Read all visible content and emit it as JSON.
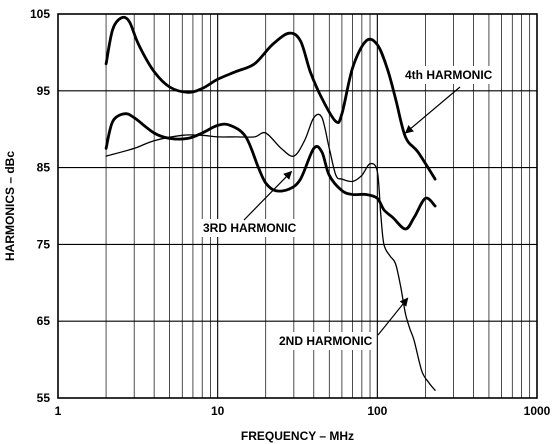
{
  "chart_data": {
    "type": "line",
    "title": "",
    "xlabel": "FREQUENCY – MHz",
    "ylabel": "HARMONICS – dBc",
    "x_scale": "log",
    "xlim": [
      1,
      1000
    ],
    "ylim": [
      55,
      105
    ],
    "x_ticks": [
      1,
      10,
      100,
      1000
    ],
    "x_tick_labels": [
      "1",
      "10",
      "100",
      "1000"
    ],
    "y_ticks": [
      55,
      65,
      75,
      85,
      95,
      105
    ],
    "y_tick_labels": [
      "55",
      "65",
      "75",
      "85",
      "95",
      "105"
    ],
    "grid": true,
    "series": [
      {
        "name": "4th HARMONIC",
        "color": "#000000",
        "x": [
          2,
          2.2,
          2.5,
          2.8,
          3.2,
          4,
          5,
          6.5,
          8,
          10,
          13,
          17,
          22,
          28,
          33,
          38,
          45,
          55,
          60,
          70,
          85,
          100,
          115,
          130,
          150,
          180,
          230
        ],
        "y": [
          98.5,
          103,
          104.5,
          104,
          101,
          97.5,
          95.5,
          94.8,
          95.3,
          96.5,
          97.5,
          98.5,
          101,
          102.5,
          101.5,
          97.5,
          94,
          91,
          92,
          98,
          101.5,
          101,
          98,
          94,
          89,
          87,
          83.5
        ]
      },
      {
        "name": "3RD HARMONIC",
        "color": "#000000",
        "x": [
          2,
          2.2,
          2.6,
          3,
          4,
          5,
          6.5,
          8,
          10,
          12,
          15,
          18,
          20,
          23,
          28,
          33,
          40,
          45,
          50,
          60,
          70,
          85,
          100,
          110,
          125,
          150,
          170,
          200,
          230
        ],
        "y": [
          87.5,
          91,
          92,
          91.5,
          89.5,
          88.8,
          88.8,
          89.5,
          90.5,
          90.5,
          89,
          85,
          83,
          82,
          82.2,
          83.5,
          87.5,
          87,
          84,
          82,
          81.5,
          81.5,
          81,
          79.5,
          78.5,
          77,
          78.5,
          81,
          80
        ]
      },
      {
        "name": "2ND HARMONIC",
        "color": "#000000",
        "x": [
          2,
          3,
          4,
          6,
          8,
          10,
          13,
          17,
          20,
          25,
          30,
          35,
          40,
          45,
          50,
          55,
          60,
          70,
          80,
          90,
          100,
          105,
          110,
          120,
          130,
          140,
          150,
          160,
          170,
          190,
          210,
          230
        ],
        "y": [
          86.5,
          87.5,
          88.5,
          89.2,
          89.2,
          89,
          89,
          89,
          89.5,
          87.5,
          86.5,
          88.5,
          91.5,
          91.5,
          87.5,
          84,
          83.5,
          83.2,
          84,
          85.5,
          84.5,
          79,
          75,
          73.5,
          72.5,
          69.5,
          66,
          64,
          62.5,
          58.5,
          57,
          56
        ]
      }
    ],
    "annotations": [
      {
        "text": "4th HARMONIC",
        "target_x": 150,
        "target_y": 89.5
      },
      {
        "text": "3RD HARMONIC",
        "target_x": 29,
        "target_y": 84.5
      },
      {
        "text": "2ND HARMONIC",
        "target_x": 155,
        "target_y": 68
      }
    ]
  }
}
